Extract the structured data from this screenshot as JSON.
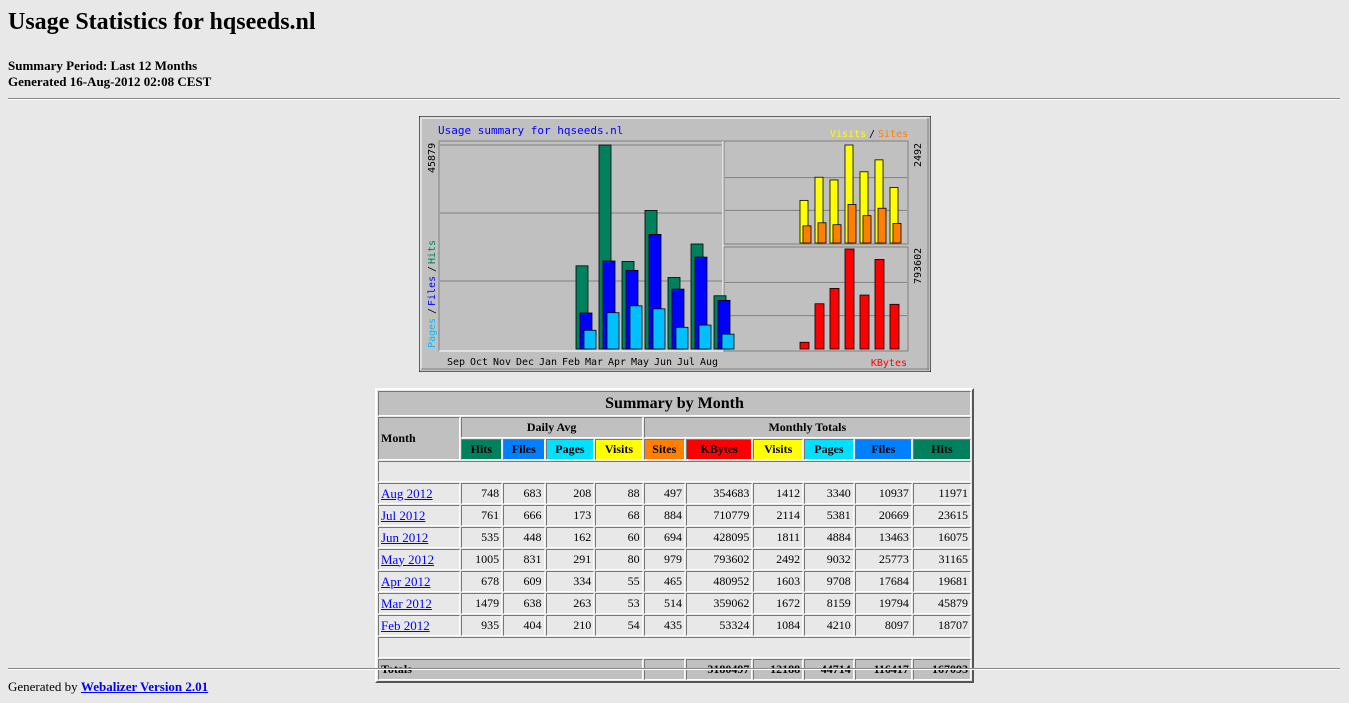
{
  "page": {
    "title": "Usage Statistics for hqseeds.nl",
    "summary_period": "Summary Period: Last 12 Months",
    "generated": "Generated 16-Aug-2012 02:08 CEST"
  },
  "graph": {
    "title": "Usage summary for hqseeds.nl",
    "legend_visits": "Visits",
    "legend_sep": "/",
    "legend_sites": "Sites",
    "legend_pages": "Pages",
    "legend_files": "Files",
    "legend_hits": "Hits",
    "legend_kbytes": "KBytes",
    "max_hits_label": "45879",
    "max_visits_label": "2492",
    "max_kbytes_label": "793602",
    "colors": {
      "hits": "#00805c",
      "files": "#0000ff",
      "pages": "#00c0ff",
      "visits": "#ffff00",
      "sites": "#ff8000",
      "kbytes": "#ff0000",
      "title": "#0000ff",
      "plot_bg": "#c0c0c0",
      "frame_bg": "#c0c0c0"
    }
  },
  "chart_data": {
    "type": "bar",
    "title": "Usage summary for hqseeds.nl",
    "categories": [
      "Sep",
      "Oct",
      "Nov",
      "Dec",
      "Jan",
      "Feb",
      "Mar",
      "Apr",
      "May",
      "Jun",
      "Jul",
      "Aug"
    ],
    "series": [
      {
        "name": "Hits",
        "values": [
          0,
          0,
          0,
          0,
          0,
          18707,
          45879,
          19681,
          31165,
          16075,
          23615,
          11971
        ]
      },
      {
        "name": "Files",
        "values": [
          0,
          0,
          0,
          0,
          0,
          8097,
          19794,
          17684,
          25773,
          13463,
          20669,
          10937
        ]
      },
      {
        "name": "Pages",
        "values": [
          0,
          0,
          0,
          0,
          0,
          4210,
          8159,
          9708,
          9032,
          4884,
          5381,
          3340
        ]
      },
      {
        "name": "Visits",
        "values": [
          0,
          0,
          0,
          0,
          0,
          1084,
          1672,
          1603,
          2492,
          1811,
          2114,
          1412
        ]
      },
      {
        "name": "Sites",
        "values": [
          0,
          0,
          0,
          0,
          0,
          435,
          514,
          465,
          979,
          694,
          884,
          497
        ]
      },
      {
        "name": "KBytes",
        "values": [
          0,
          0,
          0,
          0,
          0,
          53324,
          359062,
          480952,
          793602,
          428095,
          710779,
          354683
        ]
      }
    ]
  },
  "table": {
    "title": "Summary by Month",
    "month_header": "Month",
    "daily_avg_header": "Daily Avg",
    "monthly_totals_header": "Monthly Totals",
    "col_hits": "Hits",
    "col_files": "Files",
    "col_pages": "Pages",
    "col_visits": "Visits",
    "col_sites": "Sites",
    "col_kbytes": "KBytes",
    "rows": [
      {
        "month": "Aug 2012",
        "d_hits": "748",
        "d_files": "683",
        "d_pages": "208",
        "d_visits": "88",
        "sites": "497",
        "kbytes": "354683",
        "visits": "1412",
        "pages": "3340",
        "files": "10937",
        "hits": "11971"
      },
      {
        "month": "Jul 2012",
        "d_hits": "761",
        "d_files": "666",
        "d_pages": "173",
        "d_visits": "68",
        "sites": "884",
        "kbytes": "710779",
        "visits": "2114",
        "pages": "5381",
        "files": "20669",
        "hits": "23615"
      },
      {
        "month": "Jun 2012",
        "d_hits": "535",
        "d_files": "448",
        "d_pages": "162",
        "d_visits": "60",
        "sites": "694",
        "kbytes": "428095",
        "visits": "1811",
        "pages": "4884",
        "files": "13463",
        "hits": "16075"
      },
      {
        "month": "May 2012",
        "d_hits": "1005",
        "d_files": "831",
        "d_pages": "291",
        "d_visits": "80",
        "sites": "979",
        "kbytes": "793602",
        "visits": "2492",
        "pages": "9032",
        "files": "25773",
        "hits": "31165"
      },
      {
        "month": "Apr 2012",
        "d_hits": "678",
        "d_files": "609",
        "d_pages": "334",
        "d_visits": "55",
        "sites": "465",
        "kbytes": "480952",
        "visits": "1603",
        "pages": "9708",
        "files": "17684",
        "hits": "19681"
      },
      {
        "month": "Mar 2012",
        "d_hits": "1479",
        "d_files": "638",
        "d_pages": "263",
        "d_visits": "53",
        "sites": "514",
        "kbytes": "359062",
        "visits": "1672",
        "pages": "8159",
        "files": "19794",
        "hits": "45879"
      },
      {
        "month": "Feb 2012",
        "d_hits": "935",
        "d_files": "404",
        "d_pages": "210",
        "d_visits": "54",
        "sites": "435",
        "kbytes": "53324",
        "visits": "1084",
        "pages": "4210",
        "files": "8097",
        "hits": "18707"
      }
    ],
    "totals": {
      "label": "Totals",
      "kbytes": "3180497",
      "visits": "12188",
      "pages": "44714",
      "files": "116417",
      "hits": "167093"
    }
  },
  "footer": {
    "prefix": "Generated by",
    "link_text": "Webalizer Version 2.01"
  }
}
